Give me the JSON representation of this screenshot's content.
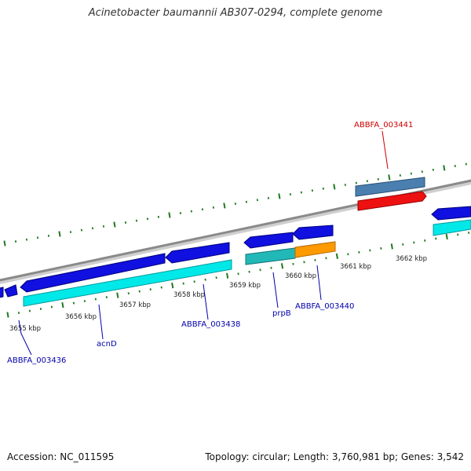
{
  "title": "Acinetobacter baumannii AB307-0294, complete genome",
  "footer": {
    "accession": "Accession: NC_011595",
    "summary": "Topology: circular; Length: 3,760,981 bp; Genes: 3,542"
  },
  "colors": {
    "backbone": "#8a8a8a",
    "tick": "#1f7a1f",
    "cds_forward": "#1010e0",
    "cds_reverse": "#00e8e8",
    "cds_other_teal": "#22b8b8",
    "cds_orange": "#ff9900",
    "cds_steelblue": "#4a7fb0",
    "cds_red": "#ee1111",
    "label_blue": "#0000aa",
    "label_red": "#cc0000"
  },
  "scale": {
    "unit": "kbp",
    "tick_labels": [
      "3655 kbp",
      "3656 kbp",
      "3657 kbp",
      "3658 kbp",
      "3659 kbp",
      "3660 kbp",
      "3661 kbp",
      "3662 kbp"
    ]
  },
  "gene_labels": [
    {
      "id": "ABBFA_003436",
      "text": "ABBFA_003436",
      "color": "label_blue"
    },
    {
      "id": "acnD",
      "text": "acnD",
      "color": "label_blue"
    },
    {
      "id": "ABBFA_003438",
      "text": "ABBFA_003438",
      "color": "label_blue"
    },
    {
      "id": "prpB",
      "text": "prpB",
      "color": "label_blue"
    },
    {
      "id": "ABBFA_003440",
      "text": "ABBFA_003440",
      "color": "label_blue"
    },
    {
      "id": "ABBFA_003441",
      "text": "ABBFA_003441",
      "color": "label_red"
    }
  ]
}
